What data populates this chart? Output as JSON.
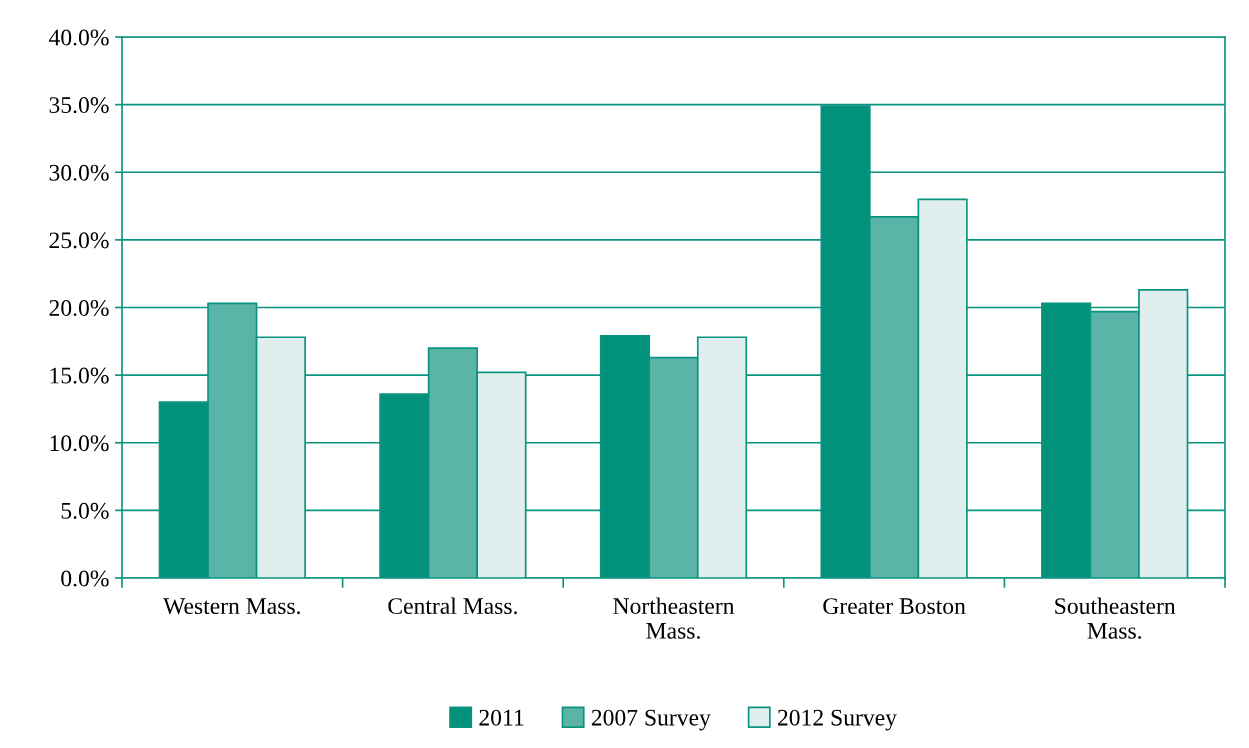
{
  "chart_data": {
    "type": "bar",
    "categories": [
      "Western Mass.",
      "Central Mass.",
      "Northeastern\nMass.",
      "Greater Boston",
      "Southeastern\nMass."
    ],
    "series": [
      {
        "name": "2011",
        "color": "#02927c",
        "values": [
          13.0,
          13.6,
          17.9,
          34.9,
          20.3
        ]
      },
      {
        "name": "2007 Survey",
        "color": "#5ab5a8",
        "values": [
          20.3,
          17.0,
          16.3,
          26.7,
          19.7
        ]
      },
      {
        "name": "2012 Survey",
        "color": "#e0efed",
        "values": [
          17.8,
          15.2,
          17.8,
          28.0,
          21.3
        ]
      }
    ],
    "ylim": [
      0,
      40
    ],
    "yticks": [
      {
        "value": 0,
        "label": "0.0%"
      },
      {
        "value": 5,
        "label": "5.0%"
      },
      {
        "value": 10,
        "label": "10.0%"
      },
      {
        "value": 15,
        "label": "15.0%"
      },
      {
        "value": 20,
        "label": "20.0%"
      },
      {
        "value": 25,
        "label": "25.0%"
      },
      {
        "value": 30,
        "label": "30.0%"
      },
      {
        "value": 35,
        "label": "35.0%"
      },
      {
        "value": 40,
        "label": "40.0%"
      }
    ],
    "grid": "y",
    "legend": "bottom"
  }
}
